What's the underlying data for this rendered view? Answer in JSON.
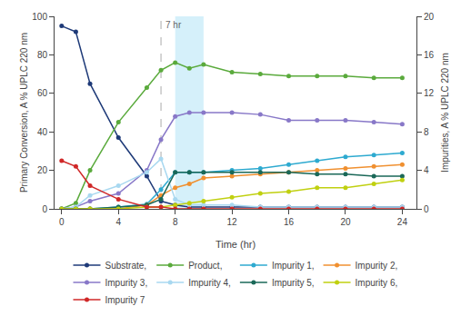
{
  "chart_data": {
    "type": "line",
    "x": [
      0,
      1,
      2,
      4,
      6,
      7,
      8,
      9,
      10,
      12,
      14,
      16,
      18,
      20,
      22,
      24
    ],
    "series": [
      {
        "name": "Substrate,",
        "color": "#1e3a78",
        "values": [
          95,
          92,
          65,
          37,
          17,
          4,
          2,
          1,
          1,
          1,
          1,
          1,
          1,
          1,
          1,
          1
        ]
      },
      {
        "name": "Product,",
        "color": "#5aaa3c",
        "values": [
          0,
          3,
          20,
          45,
          63,
          72,
          76,
          73,
          75,
          71,
          70,
          69,
          69,
          69,
          68,
          68
        ]
      },
      {
        "name": "Impurity 1,",
        "color": "#2eaad0",
        "axis": "y2",
        "values": [
          0,
          0,
          0,
          0.2,
          0.5,
          2,
          3.8,
          3.8,
          3.8,
          4.0,
          4.2,
          4.6,
          5.0,
          5.4,
          5.6,
          5.8
        ]
      },
      {
        "name": "Impurity 2,",
        "color": "#f09030",
        "axis": "y2",
        "values": [
          0,
          0,
          0,
          0,
          0.4,
          1.4,
          2.2,
          2.6,
          3.2,
          3.4,
          3.6,
          3.8,
          4.0,
          4.2,
          4.4,
          4.6
        ]
      },
      {
        "name": "Impurity 3,",
        "color": "#8878c8",
        "axis": "y2",
        "values": [
          0,
          0.2,
          0.8,
          1.6,
          4.0,
          7.2,
          9.6,
          10.0,
          10.0,
          10.0,
          9.8,
          9.2,
          9.2,
          9.2,
          9.0,
          8.8
        ]
      },
      {
        "name": "Impurity 4,",
        "color": "#a8d8f0",
        "axis": "y2",
        "values": [
          0,
          0.2,
          1.4,
          2.4,
          3.8,
          5.2,
          1.0,
          0.4,
          0.4,
          0.4,
          0.2,
          0.2,
          0.2,
          0.2,
          0.2,
          0.2
        ]
      },
      {
        "name": "Impurity 5,",
        "color": "#1a6858",
        "axis": "y2",
        "values": [
          0,
          0,
          0,
          0.2,
          0.4,
          1.0,
          3.8,
          3.8,
          3.8,
          3.8,
          3.8,
          3.8,
          3.6,
          3.6,
          3.4,
          3.4
        ]
      },
      {
        "name": "Impurity 6,",
        "color": "#c0d010",
        "axis": "y2",
        "values": [
          0,
          0,
          0,
          0,
          0.2,
          0.2,
          0.4,
          0.6,
          0.8,
          1.2,
          1.6,
          1.8,
          2.2,
          2.2,
          2.6,
          3.0
        ]
      },
      {
        "name": "Impurity 7",
        "color": "#d02828",
        "axis": "y2",
        "values": [
          5.0,
          4.4,
          2.4,
          1.0,
          0.2,
          0.2,
          0,
          0,
          0,
          0,
          0,
          0,
          0,
          0,
          0,
          0
        ]
      }
    ],
    "marker": "circle",
    "xlabel": "Time (hr)",
    "ylabel": "Primary Conversion, A % UPLC 220 nm",
    "y2label": "Impurities, A % UPLC 220 nm",
    "xlim": [
      -0.5,
      25
    ],
    "xticks": [
      0,
      4,
      8,
      12,
      16,
      20,
      24
    ],
    "ylim": [
      0,
      100
    ],
    "yticks": [
      0,
      20,
      40,
      60,
      80,
      100
    ],
    "y2lim": [
      0,
      20
    ],
    "y2ticks": [
      0,
      4,
      8,
      12,
      16,
      20
    ],
    "shaded_region": {
      "x0": 8,
      "x1": 10,
      "color": "#bfe8f8"
    },
    "vline": {
      "x": 7,
      "color": "#aaaaaa",
      "line_style": "dash"
    },
    "annotations": [
      {
        "text": "7 hr",
        "x": 7
      }
    ],
    "legend": "bottom",
    "grid": false
  }
}
